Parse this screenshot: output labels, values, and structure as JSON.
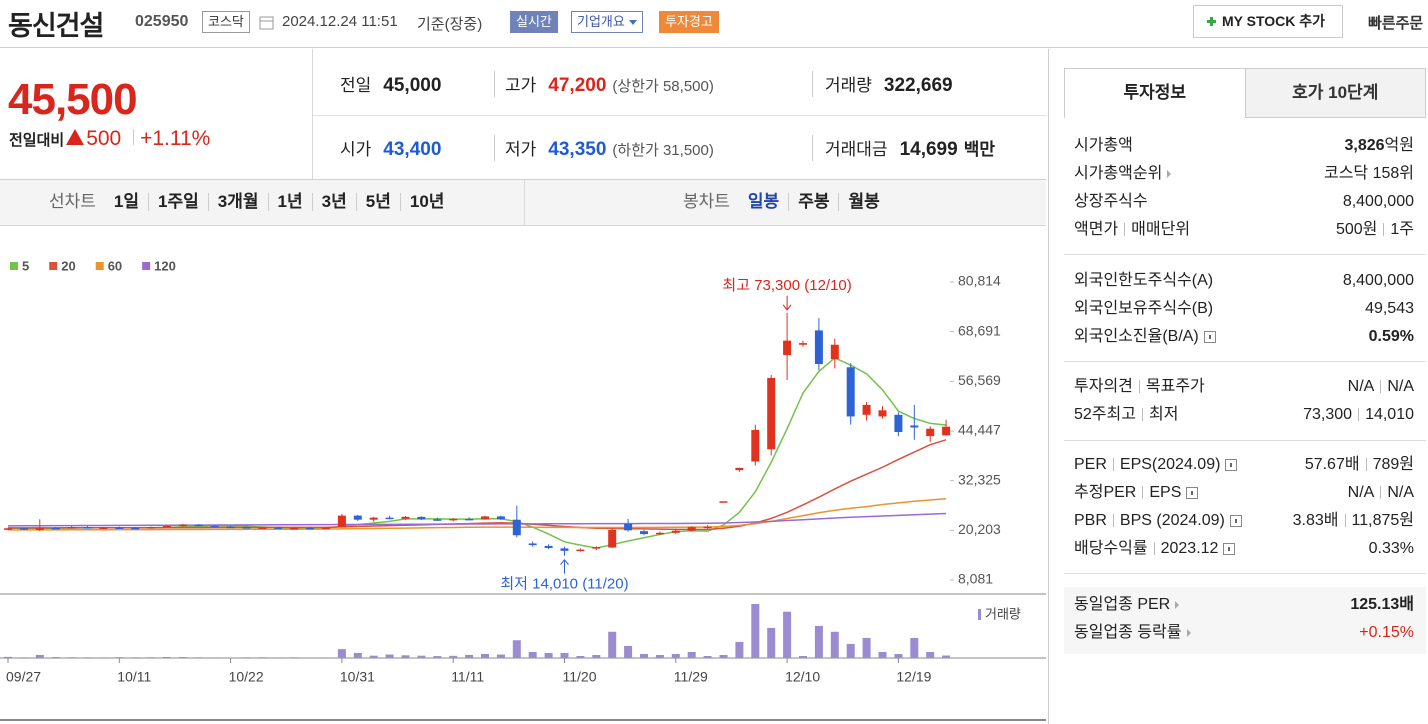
{
  "header": {
    "name": "동신건설",
    "code": "025950",
    "market": "코스닥",
    "datetime": "2024.12.24 11:51",
    "basis": "기준(장중)",
    "badges": [
      "실시간",
      "기업개요",
      "투자경고"
    ],
    "my_stock": "MY STOCK 추가",
    "quick_order": "빠른주문"
  },
  "quote": {
    "price": "45,500",
    "change_label": "전일대비",
    "change": "500",
    "change_rate": "+1.11%",
    "items": [
      {
        "label": "전일",
        "value": "45,000"
      },
      {
        "label": "고가",
        "value": "47,200",
        "note": "(상한가 58,500)"
      },
      {
        "label": "거래량",
        "value": "322,669"
      },
      {
        "label": "시가",
        "value": "43,400"
      },
      {
        "label": "저가",
        "value": "43,350",
        "note": "(하한가 31,500)"
      },
      {
        "label": "거래대금",
        "value": "14,699",
        "note": "백만"
      }
    ]
  },
  "chart_tabs": {
    "line_label": "선차트",
    "line_periods": [
      "1일",
      "1주일",
      "3개월",
      "1년",
      "3년",
      "5년",
      "10년"
    ],
    "candle_label": "봉차트",
    "candle_periods": [
      "일봉",
      "주봉",
      "월봉"
    ]
  },
  "chart_data": {
    "type": "candlestick",
    "categories": [
      "09/27",
      null,
      null,
      null,
      null,
      null,
      null,
      "10/11",
      null,
      null,
      null,
      null,
      null,
      null,
      "10/22",
      null,
      null,
      null,
      null,
      null,
      null,
      "10/31",
      null,
      null,
      null,
      null,
      null,
      null,
      "11/11",
      null,
      null,
      null,
      null,
      null,
      null,
      "11/20",
      null,
      null,
      null,
      null,
      null,
      null,
      "11/29",
      null,
      null,
      null,
      null,
      null,
      null,
      "12/10",
      null,
      null,
      null,
      null,
      null,
      null,
      "12/19",
      null,
      null,
      null
    ],
    "open": [
      20500,
      20700,
      20300,
      20800,
      20700,
      21000,
      20800,
      20900,
      20800,
      20700,
      21000,
      21300,
      21600,
      21300,
      21100,
      21000,
      20800,
      20900,
      20600,
      20800,
      20700,
      21000,
      23800,
      22800,
      23300,
      23000,
      23500,
      22900,
      22800,
      23000,
      22900,
      23600,
      22800,
      17000,
      16400,
      15800,
      15300,
      15800,
      16000,
      21800,
      20000,
      19400,
      19600,
      20100,
      21000,
      27300,
      34900,
      37000,
      40000,
      63000,
      65500,
      69000,
      62000,
      60000,
      48400,
      48000,
      48400,
      45800,
      43200,
      43400
    ],
    "high": [
      20900,
      20800,
      22900,
      21000,
      21200,
      21200,
      21000,
      21100,
      21000,
      21100,
      21400,
      21800,
      21700,
      21500,
      21300,
      21200,
      21000,
      21100,
      20900,
      21000,
      21000,
      24200,
      24000,
      23500,
      23800,
      23700,
      23600,
      23300,
      23200,
      23400,
      23800,
      23800,
      26200,
      17500,
      16800,
      16200,
      15800,
      16300,
      20800,
      23000,
      20300,
      19900,
      20600,
      21200,
      21500,
      27300,
      35450,
      46000,
      58100,
      73300,
      66500,
      72000,
      67000,
      61000,
      51500,
      50500,
      49000,
      50800,
      45600,
      47200
    ],
    "low": [
      20300,
      20400,
      20000,
      20500,
      20600,
      20700,
      20600,
      20700,
      20600,
      20600,
      20900,
      21100,
      21200,
      21000,
      20900,
      20700,
      20600,
      20500,
      20400,
      20600,
      20500,
      20900,
      22500,
      22300,
      22900,
      22800,
      22700,
      22500,
      22400,
      22700,
      22800,
      22700,
      18500,
      16200,
      15600,
      14010,
      15000,
      15400,
      15900,
      19900,
      19000,
      19000,
      19300,
      19900,
      20600,
      27300,
      34500,
      36000,
      38500,
      56900,
      65000,
      59300,
      59700,
      46000,
      47000,
      47500,
      43200,
      42300,
      41800,
      43350
    ],
    "close": [
      20700,
      20600,
      20800,
      20700,
      21000,
      20800,
      20900,
      20800,
      20700,
      21000,
      21300,
      21600,
      21300,
      21100,
      21000,
      20800,
      20900,
      20600,
      20800,
      20700,
      20900,
      23800,
      22800,
      23300,
      23000,
      23500,
      22900,
      22800,
      23000,
      22900,
      23600,
      22900,
      19000,
      16600,
      15900,
      15200,
      15500,
      16100,
      20300,
      20200,
      19300,
      19600,
      20100,
      21000,
      21100,
      27300,
      35450,
      44700,
      57400,
      66500,
      65900,
      60800,
      65500,
      48000,
      50800,
      49500,
      44200,
      45300,
      45000,
      45500
    ],
    "up_color": "#e0321e",
    "down_color": "#2e63d6",
    "series": [
      {
        "name": "5",
        "color": "#72c24c",
        "values": [
          20700,
          20680,
          20700,
          20720,
          20760,
          20800,
          20840,
          20840,
          20840,
          20860,
          20940,
          21080,
          21180,
          21260,
          21260,
          21200,
          21020,
          20880,
          20800,
          20760,
          20780,
          21200,
          21600,
          22000,
          22400,
          23000,
          23000,
          23000,
          22950,
          22950,
          23000,
          23050,
          22300,
          21000,
          19300,
          17400,
          16600,
          15900,
          16700,
          17600,
          18400,
          19200,
          19900,
          20100,
          20000,
          21500,
          24600,
          29600,
          36800,
          45000,
          53700,
          59000,
          62300,
          60500,
          58400,
          54500,
          49300,
          47500,
          46300,
          45900
        ]
      },
      {
        "name": "20",
        "color": "#d9503f",
        "values": [
          20800,
          20800,
          20810,
          20810,
          20820,
          20820,
          20830,
          20830,
          20840,
          20840,
          20850,
          20860,
          20870,
          20880,
          20890,
          20900,
          20900,
          20910,
          20910,
          20920,
          20930,
          21050,
          21150,
          21250,
          21350,
          21450,
          21550,
          21650,
          21750,
          21850,
          21950,
          22050,
          21950,
          21700,
          21400,
          21150,
          20900,
          20700,
          20650,
          20600,
          20550,
          20500,
          20450,
          20450,
          20400,
          20700,
          21200,
          22000,
          23100,
          24600,
          26400,
          28300,
          30300,
          32200,
          33900,
          35600,
          37500,
          39300,
          41100,
          42300
        ]
      },
      {
        "name": "60",
        "color": "#e8952c",
        "values": [
          20300,
          20310,
          20320,
          20330,
          20340,
          20350,
          20360,
          20370,
          20380,
          20390,
          20400,
          20410,
          20420,
          20430,
          20440,
          20450,
          20460,
          20470,
          20480,
          20490,
          20500,
          20550,
          20600,
          20650,
          20700,
          20750,
          20800,
          20850,
          20900,
          20950,
          21000,
          21000,
          20980,
          20960,
          20940,
          20920,
          20900,
          20880,
          20880,
          20900,
          20920,
          20940,
          20960,
          20980,
          21000,
          21150,
          21400,
          21800,
          22400,
          23100,
          23800,
          24500,
          25100,
          25600,
          26000,
          26500,
          26900,
          27300,
          27600,
          27900
        ]
      },
      {
        "name": "120",
        "color": "#9a6ad2",
        "values": [
          21300,
          21320,
          21330,
          21350,
          21360,
          21380,
          21390,
          21410,
          21420,
          21440,
          21450,
          21470,
          21480,
          21500,
          21510,
          21530,
          21540,
          21560,
          21570,
          21590,
          21600,
          21620,
          21630,
          21650,
          21660,
          21680,
          21690,
          21710,
          21720,
          21740,
          21750,
          21770,
          21780,
          21790,
          21800,
          21810,
          21820,
          21830,
          21840,
          21850,
          21860,
          21870,
          21880,
          21900,
          21920,
          22000,
          22100,
          22250,
          22400,
          22600,
          22800,
          23000,
          23200,
          23400,
          23550,
          23700,
          23850,
          24000,
          24150,
          24300
        ]
      }
    ],
    "volume": {
      "name": "거래량",
      "color": "#9b8bd0",
      "axis": "y2",
      "values": [
        150000,
        90000,
        400000,
        120000,
        100000,
        90000,
        80000,
        110000,
        90000,
        100000,
        130000,
        120000,
        90000,
        80000,
        70000,
        90000,
        100000,
        80000,
        90000,
        70000,
        80000,
        1150000,
        650000,
        300000,
        450000,
        350000,
        300000,
        250000,
        280000,
        400000,
        520000,
        450000,
        2300000,
        780000,
        650000,
        650000,
        260000,
        390000,
        3400000,
        1560000,
        520000,
        390000,
        520000,
        780000,
        260000,
        390000,
        2080000,
        7000000,
        3900000,
        6000000,
        260000,
        4160000,
        3400000,
        1820000,
        2600000,
        780000,
        520000,
        2600000,
        780000,
        322669
      ]
    },
    "ylim": [
      8081,
      80814
    ],
    "yticks": [
      {
        "value": 80814,
        "label": "80,814"
      },
      {
        "value": 68691,
        "label": "68,691"
      },
      {
        "value": 56569,
        "label": "56,569"
      },
      {
        "value": 44447,
        "label": "44,447"
      },
      {
        "value": 32325,
        "label": "32,325"
      },
      {
        "value": 20203,
        "label": "20,203"
      },
      {
        "value": 8081,
        "label": "8,081"
      }
    ],
    "y2lim": [
      0,
      7000000
    ],
    "annotations": {
      "max": "최고 73,300 (12/10)",
      "min": "최저 14,010 (11/20)"
    }
  },
  "invest_panel": {
    "tabs": [
      "투자정보",
      "호가 10단계"
    ],
    "sections": [
      [
        {
          "label": "시가총액",
          "value": "3,826",
          "unit": "억원"
        },
        {
          "label": "시가총액순위",
          "value": "코스닥 158위"
        },
        {
          "label": "상장주식수",
          "value": "8,400,000"
        },
        {
          "label": "액면가",
          "label2": "매매단위",
          "value": "500원",
          "value2": "1주"
        }
      ],
      [
        {
          "label": "외국인한도주식수(A)",
          "value": "8,400,000"
        },
        {
          "label": "외국인보유주식수(B)",
          "value": "49,543"
        },
        {
          "label": "외국인소진율(B/A)",
          "value": "0.59%"
        }
      ],
      [
        {
          "label": "투자의견",
          "label2": "목표주가",
          "value": "N/A",
          "value2": "N/A"
        },
        {
          "label": "52주최고",
          "label2": "최저",
          "value": "73,300",
          "value2": "14,010"
        }
      ],
      [
        {
          "label": "PER",
          "label2": "EPS(2024.09)",
          "value": "57.67배",
          "value2": "789원"
        },
        {
          "label": "추정PER",
          "label2": "EPS",
          "value": "N/A",
          "value2": "N/A"
        },
        {
          "label": "PBR",
          "label2": "BPS (2024.09)",
          "value": "3.83배",
          "value2": "11,875원"
        },
        {
          "label": "배당수익률",
          "label2": "2023.12",
          "value": "0.33%"
        }
      ],
      [
        {
          "label": "동일업종 PER",
          "value": "125.13배"
        },
        {
          "label": "동일업종 등락률",
          "value": "+0.15%"
        }
      ]
    ]
  }
}
